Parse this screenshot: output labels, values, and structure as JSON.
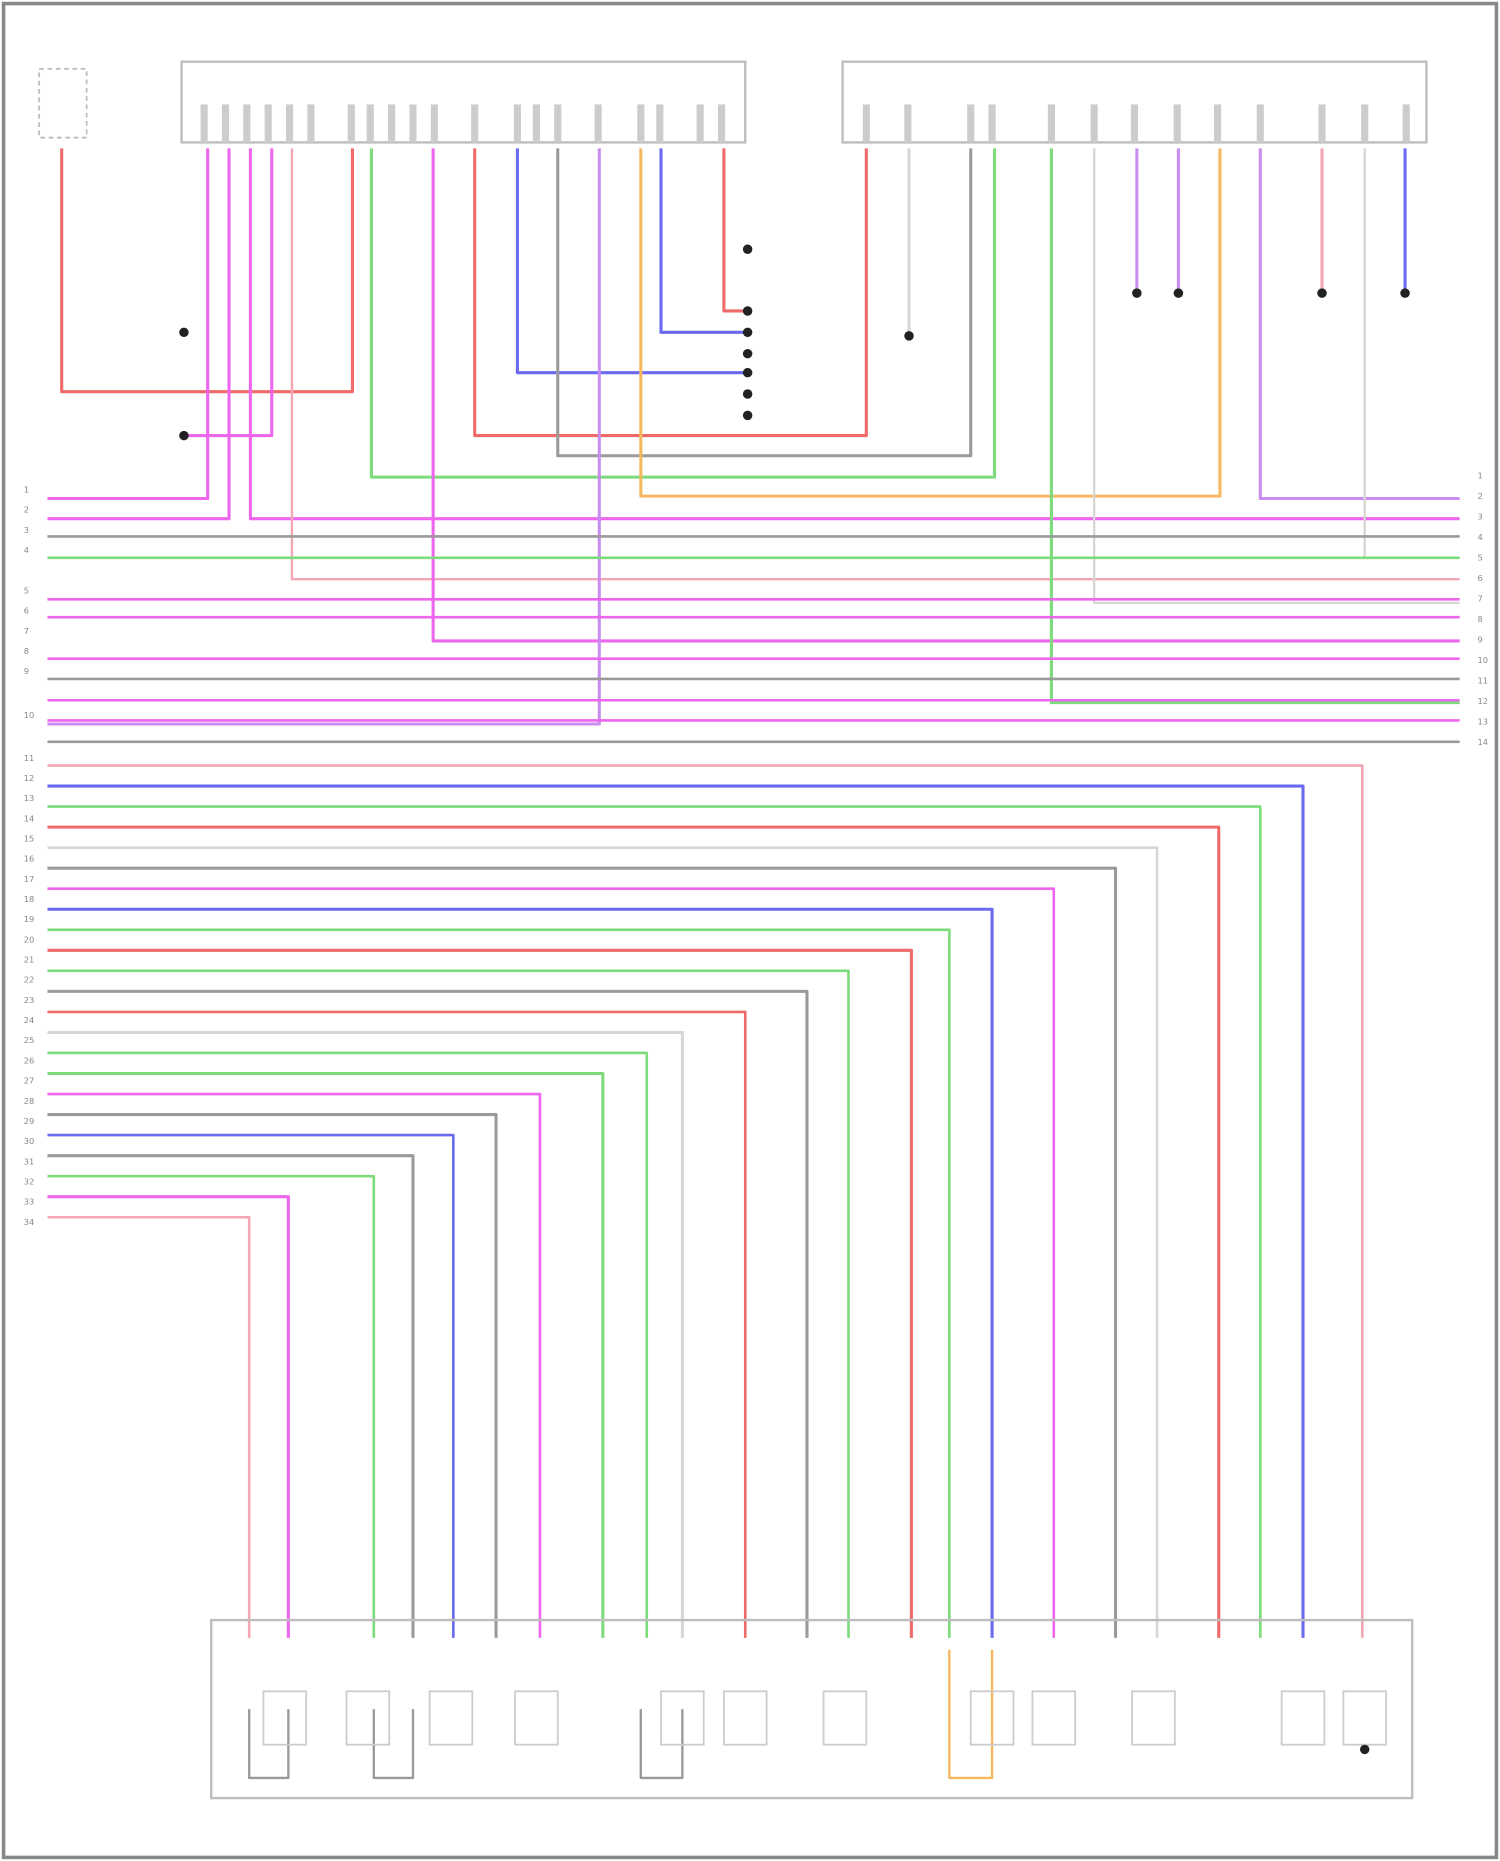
{
  "colors": {
    "red": "#f06a6a",
    "magenta": "#ee66ee",
    "pink": "#f4a6b4",
    "blue": "#6a6af0",
    "green": "#7cdc7c",
    "gray": "#9a9a9a",
    "lightgray": "#d6d6d6",
    "orange": "#f5b860",
    "violet": "#c98cf0",
    "frame": "#bdbdbd"
  },
  "left_row_numbers": [
    "1",
    "2",
    "3",
    "4",
    "5",
    "6",
    "7",
    "8",
    "9",
    "10",
    "11",
    "12",
    "13",
    "14",
    "15",
    "16",
    "17",
    "18",
    "19",
    "20",
    "21",
    "22",
    "23",
    "24",
    "25",
    "26",
    "27",
    "28",
    "29",
    "30",
    "31",
    "32",
    "33",
    "34"
  ],
  "right_row_numbers": [
    "1",
    "2",
    "3",
    "4",
    "5",
    "6",
    "7",
    "8",
    "9",
    "10",
    "11",
    "12",
    "13",
    "14"
  ],
  "bus_wires": [
    "magenta",
    "magenta",
    "gray",
    "green",
    "pink",
    "magenta",
    "magenta",
    "magenta",
    "magenta",
    "gray",
    "magenta",
    "magenta",
    "gray"
  ],
  "drop_wires": [
    "pink",
    "blue",
    "green",
    "red",
    "lightgray",
    "gray",
    "magenta",
    "blue",
    "green",
    "red",
    "green",
    "gray",
    "red",
    "lightgray",
    "green",
    "green",
    "magenta",
    "gray",
    "blue",
    "gray",
    "green",
    "magenta",
    "pink"
  ]
}
